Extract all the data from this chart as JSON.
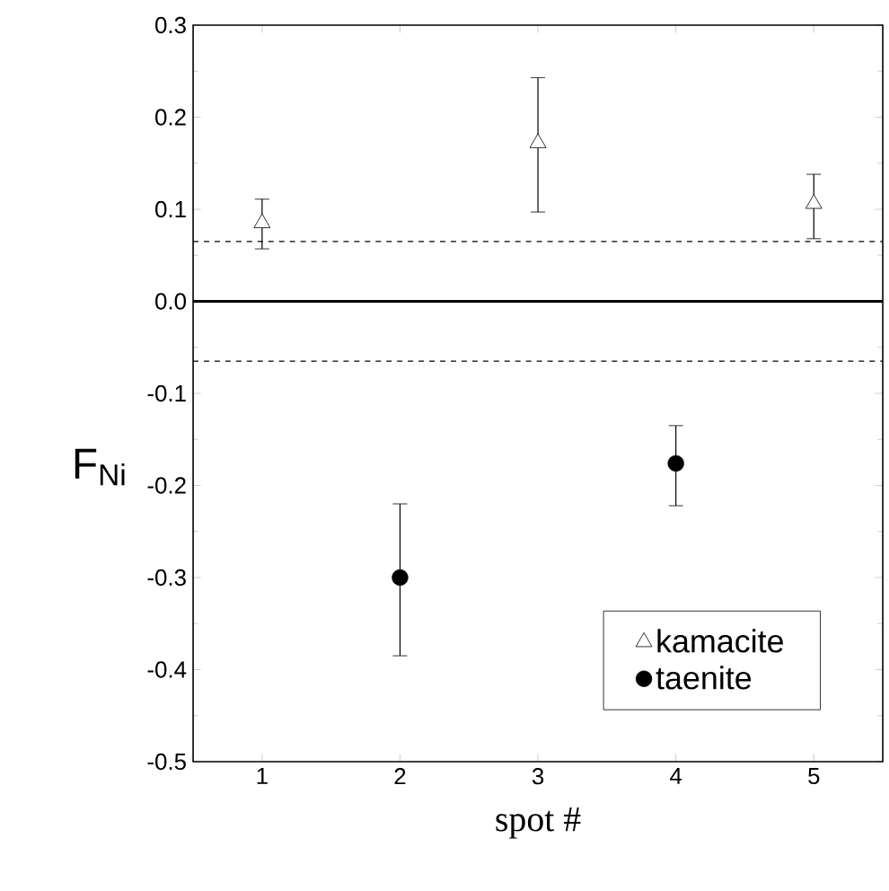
{
  "chart_data": {
    "type": "scatter",
    "xlabel": "spot #",
    "ylabel": "F$_{Ni}$",
    "xlim": [
      0.5,
      5.5
    ],
    "xticks": [
      1,
      2,
      3,
      4,
      5
    ],
    "ylim": [
      -0.5,
      0.3
    ],
    "yticks": [
      {
        "value": -0.5,
        "label": "-0.5"
      },
      {
        "value": -0.4,
        "label": "-0.4"
      },
      {
        "value": -0.3,
        "label": "-0.3"
      },
      {
        "value": -0.2,
        "label": "-0.2"
      },
      {
        "value": -0.1,
        "label": "-0.1"
      },
      {
        "value": 0,
        "label": "0.0"
      },
      {
        "value": 0.1,
        "label": "0.1"
      },
      {
        "value": 0.2,
        "label": "0.2"
      },
      {
        "value": 0.3,
        "label": "0.3"
      }
    ],
    "legend": "bottom right",
    "series": [
      {
        "name": "kamacite",
        "color": "#000000",
        "marker": "triangle",
        "x": [
          1,
          3,
          5
        ],
        "values": [
          0.085,
          0.172,
          0.106
        ],
        "errors": [
          [
            0.057,
            0.111
          ],
          [
            0.097,
            0.243
          ],
          [
            0.068,
            0.138
          ]
        ]
      },
      {
        "name": "taenite",
        "color": "#000000",
        "marker": "circle",
        "x": [
          2,
          4
        ],
        "values": [
          -0.3,
          -0.176
        ],
        "errors": [
          [
            -0.385,
            -0.22
          ],
          [
            -0.222,
            -0.135
          ]
        ]
      }
    ],
    "ref_lines": [
      {
        "axis": "y",
        "value": 0,
        "line_style": "solid"
      },
      {
        "axis": "y",
        "value": 0.065,
        "line_style": "dashed"
      },
      {
        "axis": "y",
        "value": -0.065,
        "line_style": "dashed"
      }
    ]
  }
}
